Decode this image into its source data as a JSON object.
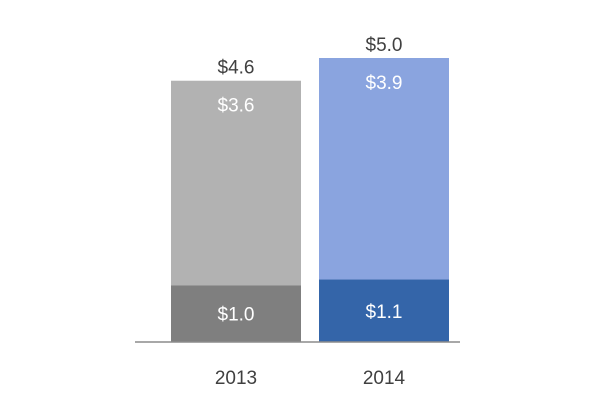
{
  "chart_data": {
    "type": "bar",
    "stacked": true,
    "categories": [
      "2013",
      "2014"
    ],
    "series": [
      {
        "values": [
          1.0,
          1.1
        ],
        "value_labels": [
          "$1.0",
          "$1.1"
        ],
        "colors": [
          "#7f7f7f",
          "#3465a9"
        ]
      },
      {
        "values": [
          3.6,
          3.9
        ],
        "value_labels": [
          "$3.6",
          "$3.9"
        ],
        "colors": [
          "#b2b2b2",
          "#8aa4df"
        ]
      }
    ],
    "totals": [
      4.6,
      5.0
    ],
    "total_labels": [
      "$4.6",
      "$5.0"
    ],
    "ylim": [
      0,
      5.0
    ],
    "grid": false,
    "legend": "none",
    "title": "",
    "xlabel": "",
    "ylabel": ""
  }
}
